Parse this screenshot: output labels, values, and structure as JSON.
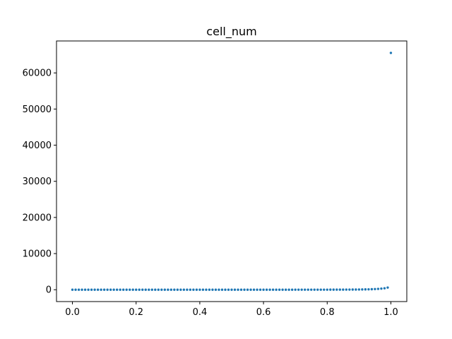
{
  "chart_data": {
    "type": "scatter",
    "title": "cell_num",
    "xlabel": "",
    "ylabel": "",
    "xlim": [
      -0.05,
      1.05
    ],
    "ylim": [
      -3280,
      68840
    ],
    "x_ticks": [
      0.0,
      0.2,
      0.4,
      0.6,
      0.8,
      1.0
    ],
    "x_tick_labels": [
      "0.0",
      "0.2",
      "0.4",
      "0.6",
      "0.8",
      "1.0"
    ],
    "y_ticks": [
      0,
      10000,
      20000,
      30000,
      40000,
      50000,
      60000
    ],
    "y_tick_labels": [
      "0",
      "10000",
      "20000",
      "30000",
      "40000",
      "50000",
      "60000"
    ],
    "grid": false,
    "marker_color": "#1f77b4",
    "series": [
      {
        "x": [
          0.0,
          0.01,
          0.02,
          0.03,
          0.04,
          0.05,
          0.06,
          0.07,
          0.08,
          0.09,
          0.1,
          0.11,
          0.12,
          0.13,
          0.14,
          0.15,
          0.16,
          0.17,
          0.18,
          0.19,
          0.2,
          0.21,
          0.22,
          0.23,
          0.24,
          0.25,
          0.26,
          0.27,
          0.28,
          0.29,
          0.3,
          0.31,
          0.32,
          0.33,
          0.34,
          0.35,
          0.36,
          0.37,
          0.38,
          0.39,
          0.4,
          0.41,
          0.42,
          0.43,
          0.44,
          0.45,
          0.46,
          0.47,
          0.48,
          0.49,
          0.5,
          0.51,
          0.52,
          0.53,
          0.54,
          0.55,
          0.56,
          0.57,
          0.58,
          0.59,
          0.6,
          0.61,
          0.62,
          0.63,
          0.64,
          0.65,
          0.66,
          0.67,
          0.68,
          0.69,
          0.7,
          0.71,
          0.72,
          0.73,
          0.74,
          0.75,
          0.76,
          0.77,
          0.78,
          0.79,
          0.8,
          0.81,
          0.82,
          0.83,
          0.84,
          0.85,
          0.86,
          0.87,
          0.88,
          0.89,
          0.9,
          0.91,
          0.92,
          0.93,
          0.94,
          0.95,
          0.96,
          0.97,
          0.98,
          0.99,
          1.0
        ],
        "y": [
          1,
          1,
          1,
          1,
          1,
          1,
          1,
          1,
          1,
          1,
          1,
          1,
          1,
          1,
          1,
          1,
          1,
          1,
          1,
          1,
          1,
          1,
          1,
          1,
          1,
          1,
          1,
          1,
          1,
          1,
          1,
          1,
          1,
          1,
          1,
          1,
          1,
          1,
          1,
          1,
          1,
          1,
          1,
          1,
          2,
          2,
          2,
          2,
          2,
          2,
          2,
          2,
          2,
          2,
          2,
          2,
          2,
          3,
          3,
          3,
          3,
          3,
          3,
          4,
          4,
          4,
          4,
          5,
          5,
          5,
          6,
          6,
          7,
          7,
          8,
          9,
          10,
          11,
          12,
          13,
          15,
          17,
          19,
          21,
          24,
          28,
          32,
          37,
          43,
          50,
          60,
          70,
          90,
          110,
          140,
          180,
          230,
          300,
          400,
          600,
          65536
        ]
      }
    ]
  }
}
